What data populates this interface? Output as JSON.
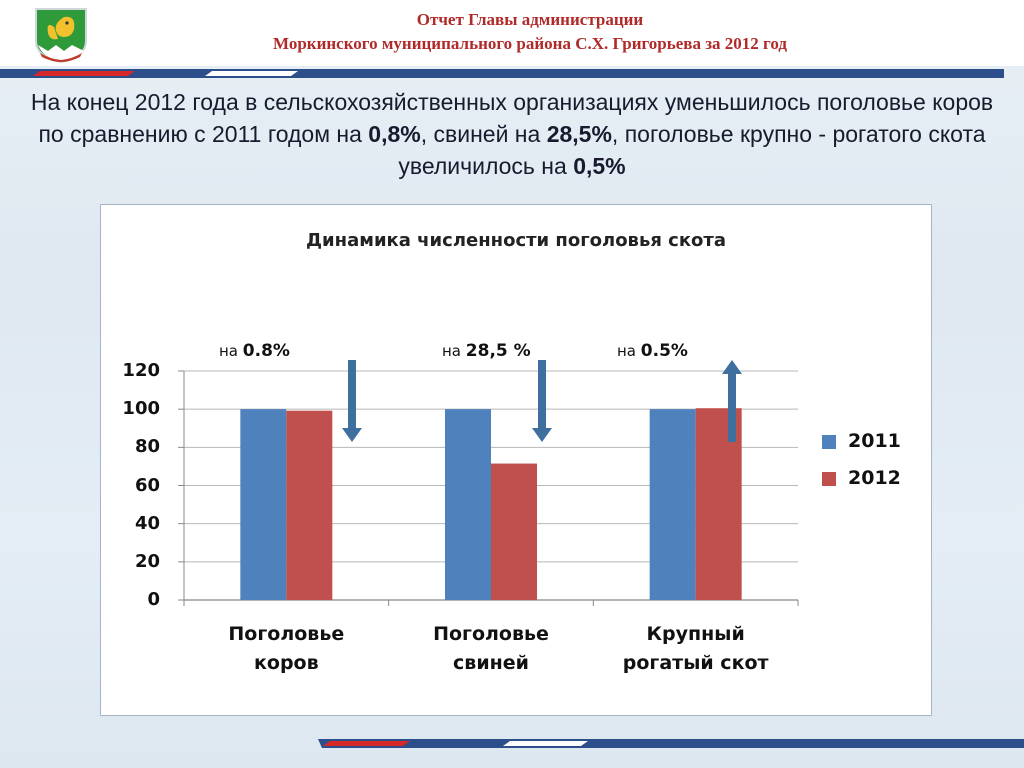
{
  "header": {
    "line1": "Отчет Главы администрации",
    "line2": "Моркинского муниципального района С.Х. Григорьева за 2012 год"
  },
  "headline": {
    "p1": "На конец 2012 года в сельскохозяйственных организациях уменьшилось поголовье коров по сравнению с 2011 годом на ",
    "v1": "0,8%",
    "p2": ", свиней на ",
    "v2": "28,5%",
    "p3": ", поголовье крупно - рогатого скота увеличилось на ",
    "v3": "0,5%"
  },
  "icons": [
    "emblem-squirrel-icon",
    "arrow-down-icon",
    "arrow-up-icon"
  ],
  "colors": {
    "series2011": "#4f81bd",
    "series2012": "#c0504d",
    "arrow": "#3f6f9f",
    "header_text": "#b12a2a"
  },
  "chart_data": {
    "type": "bar",
    "title": "Динамика численности поголовья скота",
    "categories": [
      "Поголовье коров",
      "Поголовье свиней",
      "Крупный рогатый скот"
    ],
    "category_lines": [
      [
        "Поголовье",
        "коров"
      ],
      [
        "Поголовье",
        "свиней"
      ],
      [
        "Крупный",
        "рогатый скот"
      ]
    ],
    "series": [
      {
        "name": "2011",
        "values": [
          100,
          100,
          100
        ]
      },
      {
        "name": "2012",
        "values": [
          99.2,
          71.5,
          100.5
        ]
      }
    ],
    "ylim": [
      0,
      120
    ],
    "yticks": [
      0,
      20,
      40,
      60,
      80,
      100,
      120
    ],
    "ytick_labels": [
      "0",
      "20",
      "40",
      "60",
      "80",
      "100",
      "120"
    ],
    "grid": true,
    "legend": "right",
    "annotations": [
      {
        "prefix": "на ",
        "value": "0.8%",
        "direction": "down"
      },
      {
        "prefix": "на ",
        "value": "28,5 %",
        "direction": "down"
      },
      {
        "prefix": "на ",
        "value": "0.5%",
        "direction": "up"
      }
    ]
  }
}
